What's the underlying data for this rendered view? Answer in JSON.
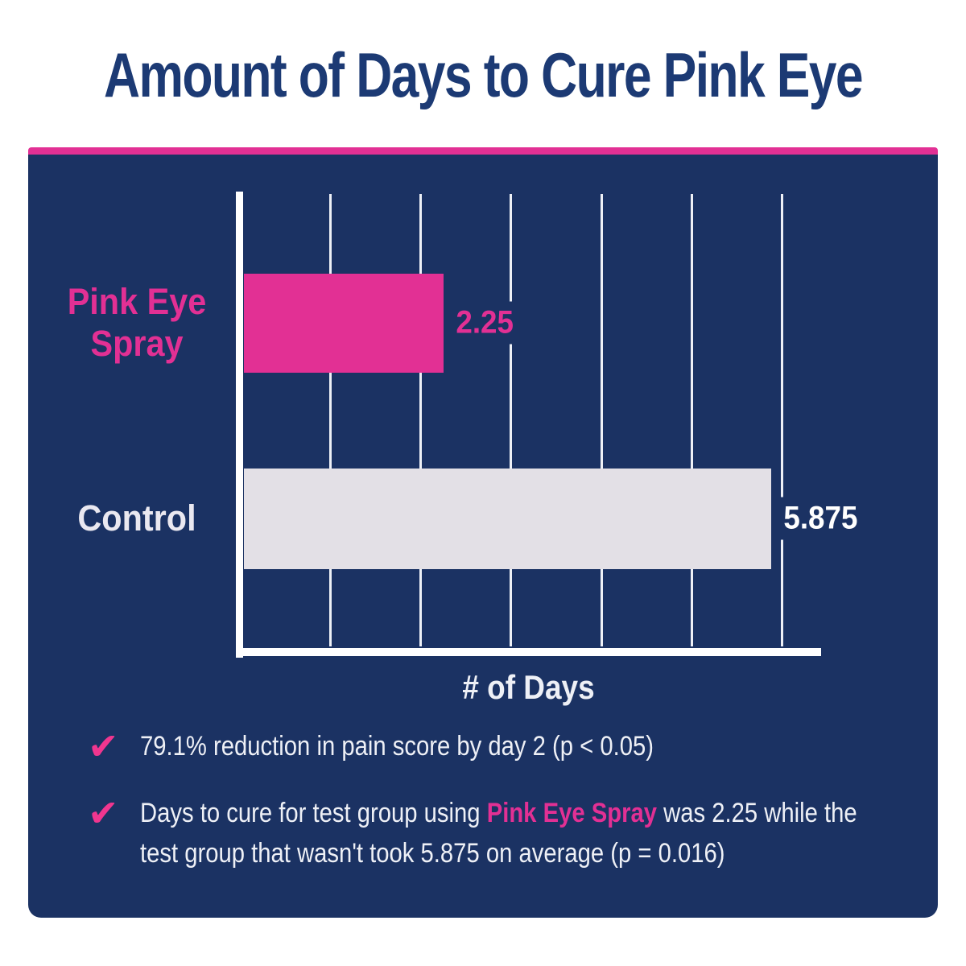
{
  "title": "Amount of Days to Cure Pink Eye",
  "colors": {
    "title_navy": "#1c3a74",
    "panel_navy": "#1b3263",
    "accent_pink": "#e23094",
    "check_pink": "#f0368f",
    "gray_bar": "#e3e0e6",
    "body_text": "#eef0f6",
    "axis_white": "#ffffff"
  },
  "chart_data": {
    "type": "bar",
    "orientation": "horizontal",
    "title": "Amount of Days to Cure Pink Eye",
    "categories": [
      "Pink Eye Spray",
      "Control"
    ],
    "values": [
      2.25,
      5.875
    ],
    "value_labels": [
      "2.25",
      "5.875"
    ],
    "bar_colors": [
      "#e23094",
      "#e3e0e6"
    ],
    "value_label_colors": [
      "#e23094",
      "#ffffff"
    ],
    "category_label_colors": [
      "#e23094",
      "#eae8f0"
    ],
    "xlabel": "# of Days",
    "ylabel": "",
    "xlim": [
      0,
      6.4
    ],
    "x_gridlines": [
      1,
      2,
      3,
      4,
      5,
      6
    ],
    "grid": true,
    "legend": false
  },
  "bullets": [
    {
      "lines": [
        {
          "segments": [
            {
              "text": "79.1% reduction in pain score by day 2 (p < 0.05)",
              "style": "normal"
            }
          ]
        }
      ]
    },
    {
      "lines": [
        {
          "segments": [
            {
              "text": "Days to cure for test group using ",
              "style": "normal"
            },
            {
              "text": "Pink Eye Spray",
              "style": "pink-bold"
            },
            {
              "text": " was 2.25 while the",
              "style": "normal"
            }
          ]
        },
        {
          "segments": [
            {
              "text": "test group that wasn't took 5.875 on average (p = 0.016)",
              "style": "normal"
            }
          ]
        }
      ]
    }
  ]
}
